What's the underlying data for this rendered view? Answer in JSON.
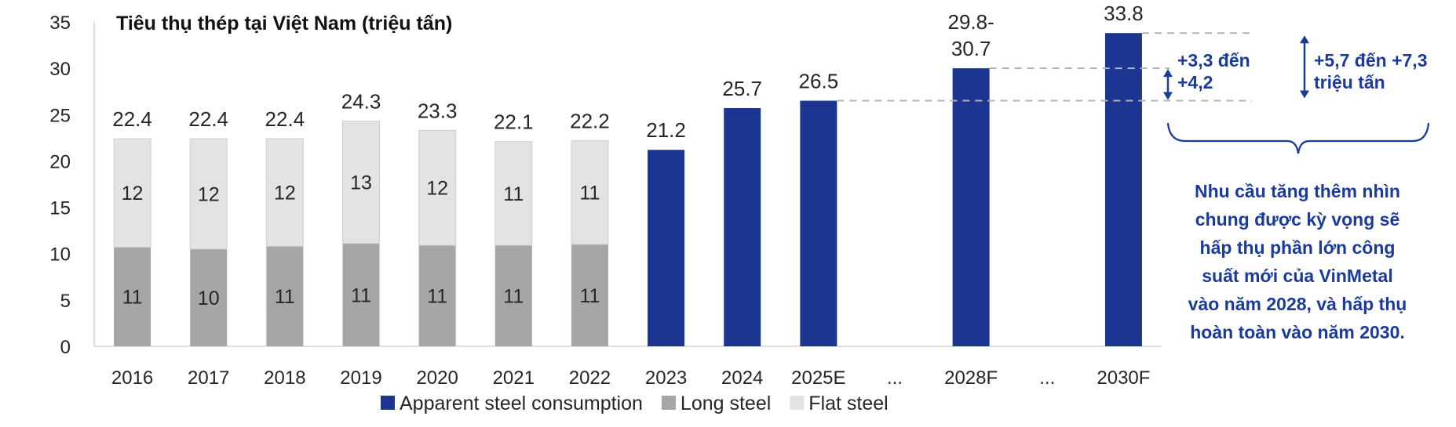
{
  "chart_data": {
    "type": "bar",
    "title": "Tiêu thụ thép tại Việt Nam (triệu tấn)",
    "ylim": [
      0,
      35
    ],
    "yticks": [
      "0",
      "5",
      "10",
      "15",
      "20",
      "25",
      "30",
      "35"
    ],
    "grid": false,
    "legend_position": "bottom-center",
    "categories": [
      "2016",
      "2017",
      "2018",
      "2019",
      "2020",
      "2021",
      "2022",
      "2023",
      "2024",
      "2025E",
      "...",
      "2028F",
      "...",
      "2030F"
    ],
    "series": [
      {
        "name": "Apparent steel consumption",
        "color": "#1b3591",
        "values": [
          null,
          null,
          null,
          null,
          null,
          null,
          null,
          21.2,
          25.7,
          26.5,
          null,
          30.0,
          null,
          33.8
        ]
      },
      {
        "name": "Long steel",
        "color": "#a6a6a6",
        "values": [
          10.7,
          10.5,
          10.8,
          11.1,
          10.9,
          10.9,
          11.0,
          null,
          null,
          null,
          null,
          null,
          null,
          null
        ],
        "labels": [
          "11",
          "10",
          "11",
          "11",
          "11",
          "11",
          "11"
        ]
      },
      {
        "name": "Flat steel",
        "color": "#e3e3e3",
        "values": [
          11.7,
          11.9,
          11.6,
          13.2,
          12.4,
          11.2,
          11.2,
          null,
          null,
          null,
          null,
          null,
          null,
          null
        ],
        "labels": [
          "12",
          "12",
          "12",
          "13",
          "12",
          "11",
          "11"
        ]
      }
    ],
    "total_labels": [
      "22.4",
      "22.4",
      "22.4",
      "24.3",
      "23.3",
      "22.1",
      "22.2",
      "21.2",
      "25.7",
      "26.5",
      "",
      "29.8-\n30.7",
      "",
      "33.8"
    ],
    "annotations": {
      "increase_2028": [
        "+3,3 đến",
        "+4,2"
      ],
      "increase_2030": [
        "+5,7 đến +7,3",
        "triệu tấn"
      ],
      "note": [
        "Nhu cầu tăng thêm nhìn",
        "chung được kỳ vọng sẽ",
        "hấp thụ phần lớn công",
        "suất mới của VinMetal",
        "vào năm 2028, và hấp thụ",
        "hoàn toàn vào năm 2030."
      ]
    }
  }
}
